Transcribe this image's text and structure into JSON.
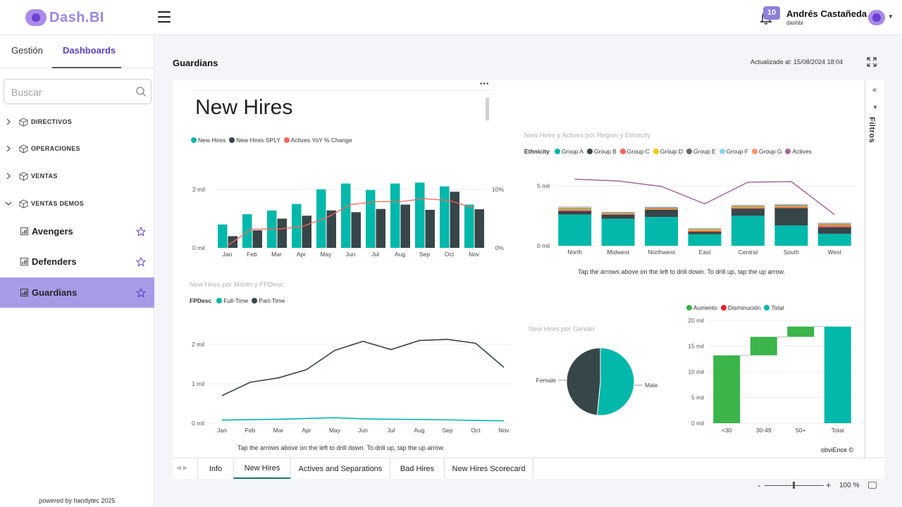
{
  "app": {
    "logo_text": "Dash.BI"
  },
  "header": {
    "notifications_count": "10",
    "user_name": "Andrés Castañeda",
    "user_org": "dashbi"
  },
  "sidebar": {
    "tabs": [
      {
        "label": "Gestión",
        "active": false
      },
      {
        "label": "Dashboards",
        "active": true
      }
    ],
    "search_placeholder": "Buscar",
    "groups": [
      {
        "label": "DIRECTIVOS",
        "expanded": false
      },
      {
        "label": "OPERACIONES",
        "expanded": false
      },
      {
        "label": "VENTAS",
        "expanded": false
      },
      {
        "label": "VENTAS DEMOS",
        "expanded": true
      }
    ],
    "items": [
      {
        "label": "Avengers",
        "active": false
      },
      {
        "label": "Defenders",
        "active": false
      },
      {
        "label": "Guardians",
        "active": true
      }
    ],
    "footer": "powered by handytec 2025"
  },
  "main": {
    "title": "Guardians",
    "updated": "Actualizado al: 15/08/2024 18:04",
    "filters_label": "Filtros"
  },
  "report": {
    "title": "New Hires",
    "brand": "obviEnce ©"
  },
  "colors": {
    "teal": "#01b8aa",
    "dark": "#374649",
    "red": "#fd625e",
    "yellow": "#f2c80f",
    "grey": "#5f6b6d",
    "lightblue": "#8ad4eb",
    "orange": "#fe9666",
    "purple": "#a66999",
    "green": "#3bb44a",
    "decrease": "#e8202a",
    "accent": "#a79be8"
  },
  "chart_data": [
    {
      "type": "bar",
      "name": "hires-by-month",
      "title": "",
      "legend": [
        "New Hires",
        "New Hires SPLY",
        "Actives YoY % Change"
      ],
      "categories": [
        "Jan",
        "Feb",
        "Mar",
        "Apr",
        "May",
        "Jun",
        "Jul",
        "Aug",
        "Sep",
        "Oct",
        "Nov"
      ],
      "series": [
        {
          "name": "New Hires",
          "values": [
            800,
            1150,
            1280,
            1500,
            2000,
            2200,
            1980,
            2200,
            2230,
            2100,
            1480
          ]
        },
        {
          "name": "New Hires SPLY",
          "values": [
            400,
            600,
            1000,
            1100,
            1280,
            1220,
            1330,
            1480,
            1300,
            1920,
            1320
          ]
        },
        {
          "name": "Actives YoY % Change",
          "values": [
            0.4,
            3.2,
            3.2,
            3.6,
            5.1,
            7.4,
            7.9,
            7.9,
            8.4,
            8.1,
            6.8
          ]
        }
      ],
      "yticks": [
        "0 mil",
        "2 mil"
      ],
      "y2ticks": [
        "0%",
        "10%"
      ],
      "ylim": [
        0,
        2600
      ],
      "y2lim": [
        0,
        13
      ]
    },
    {
      "type": "bar",
      "name": "region-ethnicity",
      "title": "New Hires y Actives por Region y Ethnicity",
      "legend_head": "Ethnicity",
      "legend": [
        "Group A",
        "Group B",
        "Group C",
        "Group D",
        "Group E",
        "Group F",
        "Group G",
        "Actives"
      ],
      "categories": [
        "North",
        "Midwest",
        "Northwest",
        "East",
        "Central",
        "South",
        "West"
      ],
      "stacks": [
        {
          "name": "Group A",
          "values": [
            2600,
            2250,
            2400,
            950,
            2500,
            1700,
            1000
          ]
        },
        {
          "name": "Group B",
          "values": [
            300,
            350,
            600,
            220,
            600,
            1450,
            550
          ]
        },
        {
          "name": "Group C",
          "values": [
            100,
            60,
            70,
            90,
            90,
            90,
            160
          ]
        },
        {
          "name": "Group D",
          "values": [
            70,
            40,
            40,
            100,
            70,
            60,
            60
          ]
        },
        {
          "name": "Group E",
          "values": [
            60,
            50,
            60,
            40,
            50,
            70,
            50
          ]
        },
        {
          "name": "Group F",
          "values": [
            80,
            40,
            50,
            40,
            60,
            60,
            70
          ]
        },
        {
          "name": "Group G",
          "values": [
            50,
            40,
            30,
            30,
            40,
            50,
            40
          ]
        }
      ],
      "line": {
        "name": "Actives",
        "values": [
          5550,
          5400,
          4950,
          3500,
          5300,
          5350,
          2600
        ]
      },
      "yticks": [
        "0 mil",
        "5 mil"
      ],
      "ylim": [
        0,
        6400
      ],
      "note": "Tap the arrows above on the left to drill down. To drill up, tap the up arrow."
    },
    {
      "type": "line",
      "name": "hires-by-fpdesc",
      "title": "New Hires por Month y FPDesc",
      "legend_head": "FPDesc",
      "legend": [
        "Full-Time",
        "Part-Time"
      ],
      "categories": [
        "Jan",
        "Feb",
        "Mar",
        "Apr",
        "May",
        "Jun",
        "Jul",
        "Aug",
        "Sep",
        "Oct",
        "Nov"
      ],
      "series": [
        {
          "name": "Full-Time",
          "values": [
            80,
            90,
            100,
            120,
            140,
            110,
            100,
            95,
            85,
            70,
            60
          ]
        },
        {
          "name": "Part-Time",
          "values": [
            700,
            1040,
            1150,
            1360,
            1850,
            2080,
            1870,
            2100,
            2130,
            2030,
            1420
          ]
        }
      ],
      "yticks": [
        "0 mil",
        "1 mil",
        "2 mil"
      ],
      "ylim": [
        0,
        2450
      ],
      "note": "Tap the arrows above on the left to drill down. To drill up, tap the up arrow."
    },
    {
      "type": "pie",
      "name": "hires-by-gender",
      "title": "New Hires por Gender",
      "slices": [
        {
          "label": "Male",
          "value": 51.5
        },
        {
          "label": "Female",
          "value": 48.5
        }
      ]
    },
    {
      "type": "bar",
      "name": "waterfall-age",
      "title": "",
      "legend": [
        "Aumento",
        "Disminución",
        "Total"
      ],
      "categories": [
        "<30",
        "30-49",
        "50+",
        "Total"
      ],
      "steps": [
        {
          "label": "<30",
          "start": 0,
          "end": 13200
        },
        {
          "label": "30-49",
          "start": 13200,
          "end": 16800
        },
        {
          "label": "50+",
          "start": 16800,
          "end": 18800
        },
        {
          "label": "Total",
          "start": 0,
          "end": 18800
        }
      ],
      "yticks": [
        "0 mil",
        "5 mil",
        "10 mil",
        "15 mil",
        "20 mil"
      ],
      "ylim": [
        0,
        20000
      ]
    }
  ],
  "page_tabs": [
    {
      "label": "Info",
      "active": false
    },
    {
      "label": "New Hires",
      "active": true
    },
    {
      "label": "Actives and Separations",
      "active": false
    },
    {
      "label": "Bad Hires",
      "active": false
    },
    {
      "label": "New Hires Scorecard",
      "active": false
    }
  ],
  "zoom": {
    "value": "100 %",
    "minus": "-",
    "plus": "+"
  }
}
